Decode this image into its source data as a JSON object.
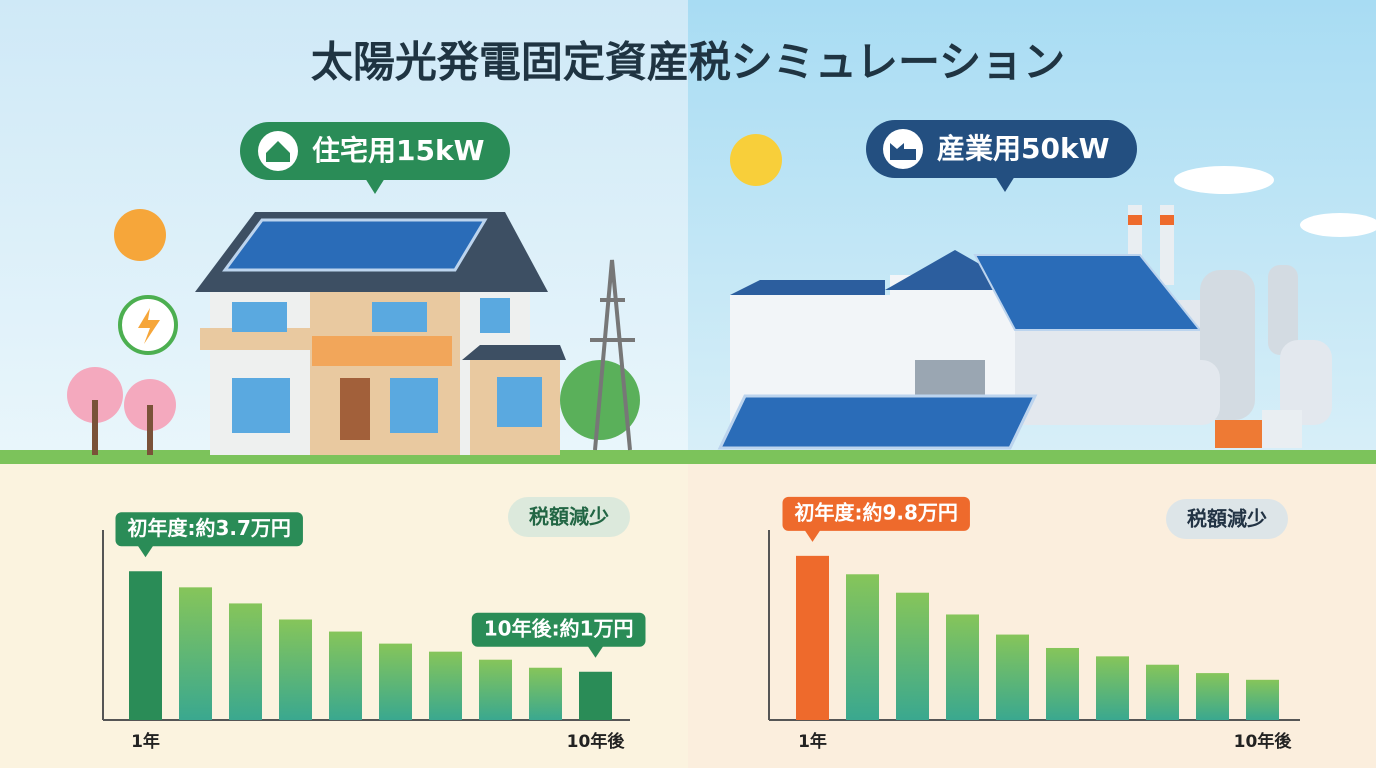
{
  "title": "太陽光発電固定資産税シミュレーション",
  "panels": [
    {
      "label": "住宅用15kW",
      "badge": "税額減少",
      "chart_data": {
        "type": "bar",
        "categories": [
          "1年",
          null,
          null,
          null,
          null,
          null,
          null,
          null,
          null,
          "10年後"
        ],
        "values": [
          3.7,
          3.3,
          2.9,
          2.5,
          2.2,
          1.9,
          1.7,
          1.5,
          1.3,
          1.2
        ],
        "ylim": [
          0,
          5
        ],
        "colors": {
          "top": "#86c55a",
          "bottom": "#3aa88f",
          "highlight": "#2a8c57"
        },
        "annotations": [
          {
            "index": 0,
            "text": "初年度:約3.7万円",
            "color": "#2a8c57"
          },
          {
            "index": 9,
            "text": "10年後:約1万円",
            "color": "#2a8c57"
          }
        ]
      }
    },
    {
      "label": "産業用50kW",
      "badge": "税額減少",
      "chart_data": {
        "type": "bar",
        "categories": [
          "1年",
          null,
          null,
          null,
          null,
          null,
          null,
          null,
          null,
          "10年後"
        ],
        "values": [
          9.8,
          8.7,
          7.6,
          6.3,
          5.1,
          4.3,
          3.8,
          3.3,
          2.8,
          2.4
        ],
        "ylim": [
          0,
          12
        ],
        "colors": {
          "top": "#86c55a",
          "bottom": "#3aa88f",
          "highlight": "#ee6a2c"
        },
        "annotations": [
          {
            "index": 0,
            "text": "初年度:約9.8万円",
            "color": "#ee6a2c"
          }
        ]
      }
    }
  ]
}
